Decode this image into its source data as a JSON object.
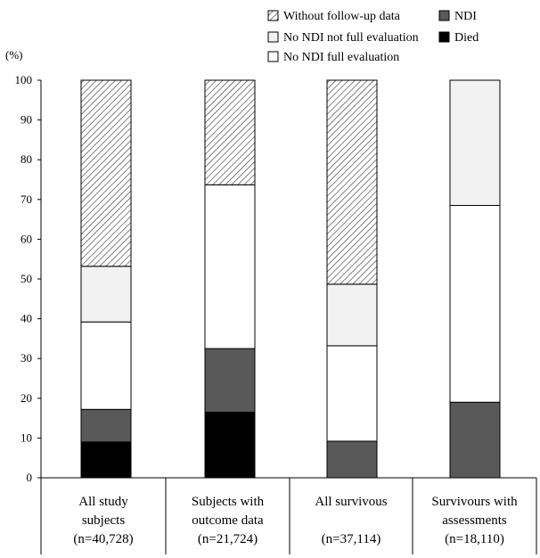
{
  "chart_data": {
    "type": "bar",
    "stacked": true,
    "unit_label": "(%)",
    "ylim": [
      0,
      100
    ],
    "y_ticks": [
      "0",
      "10",
      "20",
      "30",
      "40",
      "50",
      "60",
      "70",
      "80",
      "90",
      "100"
    ],
    "grid": false,
    "legend_position": "top-right",
    "categories": [
      {
        "line1": "All study",
        "line2": "subjects",
        "line3": "(n=40,728)"
      },
      {
        "line1": "Subjects with",
        "line2": "outcome data",
        "line3": "(n=21,724)"
      },
      {
        "line1": "All survivous",
        "line2": "",
        "line3": "(n=37,114)"
      },
      {
        "line1": "Survivours with",
        "line2": "assessments",
        "line3": "(n=18,110)"
      }
    ],
    "series": [
      {
        "name": "Died",
        "color": "#000000",
        "pattern": "solid",
        "values": [
          9,
          16.5,
          0,
          0
        ]
      },
      {
        "name": "NDI",
        "color": "#595959",
        "pattern": "solid",
        "values": [
          8.2,
          16,
          9.2,
          19
        ]
      },
      {
        "name": "No NDI full evaluation",
        "color": "#ffffff",
        "pattern": "solid",
        "values": [
          22,
          41.2,
          24,
          49.5
        ]
      },
      {
        "name": "No NDI not full evaluation",
        "color": "#f2f2f2",
        "pattern": "solid",
        "values": [
          14,
          0,
          15.5,
          31.5
        ]
      },
      {
        "name": "Without follow-up data",
        "color": "#ffffff",
        "pattern": "hatch",
        "values": [
          46.8,
          26.3,
          51.3,
          0
        ]
      }
    ],
    "legend": [
      {
        "name": "Without follow-up data",
        "pattern": "hatch"
      },
      {
        "name": "NDI",
        "pattern": "solid",
        "color": "#595959"
      },
      {
        "name": "No NDI not full evaluation",
        "pattern": "solid",
        "color": "#f2f2f2"
      },
      {
        "name": "Died",
        "pattern": "solid",
        "color": "#000000"
      },
      {
        "name": "No NDI full evaluation",
        "pattern": "solid",
        "color": "#ffffff"
      }
    ]
  }
}
